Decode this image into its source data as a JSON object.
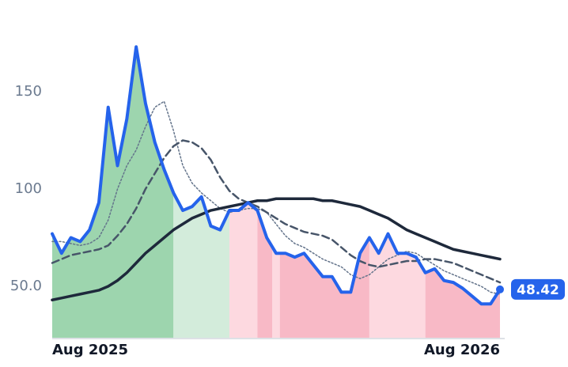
{
  "chart_data": {
    "type": "line",
    "x": [
      0,
      0.25,
      0.5,
      0.75,
      1,
      1.25,
      1.5,
      1.75,
      2,
      2.25,
      2.5,
      2.75,
      3,
      3.25,
      3.5,
      3.75,
      4,
      4.25,
      4.5,
      4.75,
      5,
      5.25,
      5.5,
      5.75,
      6,
      6.25,
      6.5,
      6.75,
      7,
      7.25,
      7.5,
      7.75,
      8,
      8.25,
      8.5,
      8.75,
      9,
      9.25,
      9.5,
      9.75,
      10,
      10.25,
      10.5,
      10.75,
      11,
      11.25,
      11.5,
      11.75,
      12
    ],
    "xlim": [
      0,
      12
    ],
    "xticks": [
      {
        "value": 0,
        "label": "Aug 2025"
      },
      {
        "value": 12,
        "label": "Aug 2026"
      }
    ],
    "ylim": [
      23.2,
      184.9
    ],
    "yticks": [
      {
        "value": 50,
        "label": "50.0"
      },
      100,
      150
    ],
    "series": [
      {
        "color": "#2563eb",
        "style": "solid",
        "width": 4,
        "values": [
          77,
          67,
          75,
          73,
          79,
          93,
          142,
          112,
          136,
          173,
          144,
          124,
          110,
          98,
          89,
          91,
          96,
          81,
          79,
          89,
          89,
          93,
          89,
          75,
          67,
          67,
          65,
          67,
          61,
          55,
          55,
          47,
          47,
          67,
          75,
          67,
          77,
          67,
          67,
          65,
          57,
          59,
          53,
          52,
          49,
          45,
          41,
          41,
          48.42
        ]
      },
      {
        "color": "#1e293b",
        "style": "solid",
        "width": 3.5,
        "values": [
          43,
          44,
          45,
          46,
          47,
          48,
          50,
          53,
          57,
          62,
          67,
          71,
          75,
          79,
          82,
          85,
          87,
          89,
          90,
          91,
          92,
          93,
          94,
          94,
          95,
          95,
          95,
          95,
          95,
          94,
          94,
          93,
          92,
          91,
          89,
          87,
          85,
          82,
          79,
          77,
          75,
          73,
          71,
          69,
          68,
          67,
          66,
          65,
          64
        ]
      },
      {
        "color": "#475569",
        "style": "dashed",
        "width": 2.5,
        "values": [
          62,
          64,
          66,
          67,
          68,
          69,
          71,
          76,
          82,
          90,
          100,
          108,
          116,
          122,
          125,
          124,
          121,
          115,
          106,
          99,
          95,
          93,
          91,
          88,
          85,
          82,
          80,
          78,
          77,
          76,
          74,
          70,
          66,
          63,
          61,
          60,
          61,
          62,
          63,
          63,
          64,
          64,
          63,
          62,
          60,
          58,
          56,
          54,
          52
        ]
      },
      {
        "color": "#64748b",
        "style": "dotted",
        "width": 1.5,
        "values": [
          73,
          73,
          72,
          71,
          72,
          75,
          84,
          100,
          112,
          120,
          132,
          142,
          145,
          130,
          112,
          103,
          98,
          94,
          90,
          88,
          89,
          90,
          90,
          88,
          82,
          76,
          72,
          70,
          67,
          64,
          62,
          60,
          56,
          54,
          56,
          60,
          64,
          66,
          68,
          67,
          64,
          61,
          58,
          56,
          54,
          52,
          50,
          47,
          46
        ]
      }
    ],
    "regions": [
      {
        "start": 0,
        "end": 3.25,
        "color": "#9dd5ae"
      },
      {
        "start": 3.25,
        "end": 4.75,
        "color": "#d3ecdb"
      },
      {
        "start": 4.75,
        "end": 5.5,
        "color": "#fdd9e0"
      },
      {
        "start": 5.5,
        "end": 5.9,
        "color": "#f8b9c6"
      },
      {
        "start": 5.9,
        "end": 6.1,
        "color": "#fdd9e0"
      },
      {
        "start": 6.1,
        "end": 8.5,
        "color": "#f8b9c6"
      },
      {
        "start": 8.5,
        "end": 10,
        "color": "#fdd9e0"
      },
      {
        "start": 10,
        "end": 12,
        "color": "#f8b9c6"
      }
    ]
  }
}
